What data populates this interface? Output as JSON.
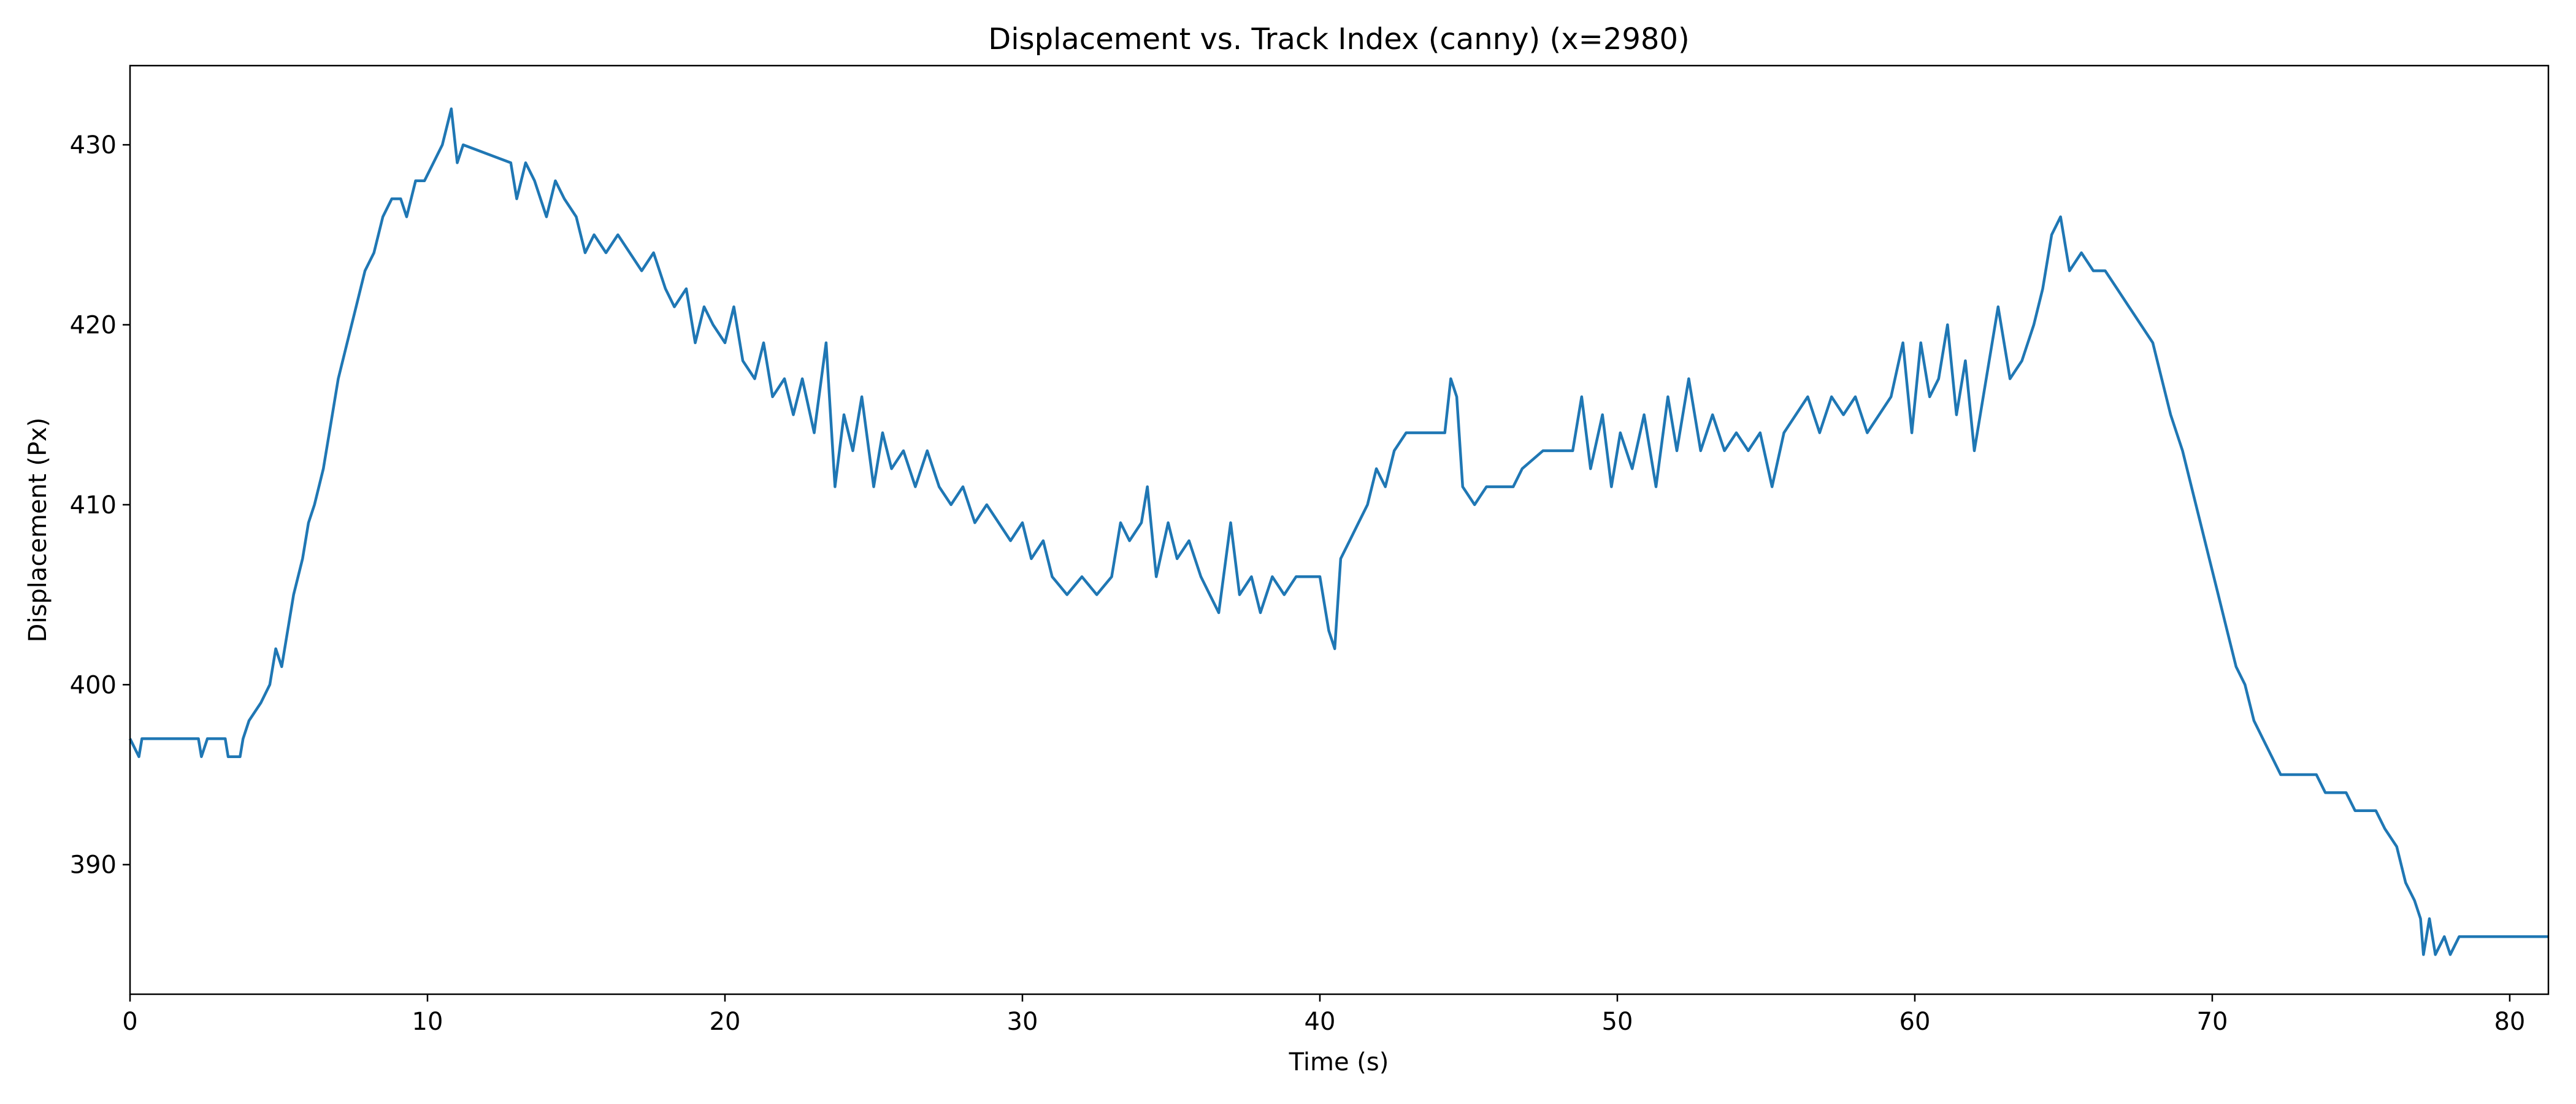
{
  "chart_data": {
    "type": "line",
    "title": "Displacement vs. Track Index (canny) (x=2980)",
    "x_label": "Time (s)",
    "y_label": "Displacement (Px)",
    "color": "#1f77b4",
    "xlim": [
      0,
      81.3
    ],
    "ylim": [
      382.8,
      434.4
    ],
    "xticks": [
      0,
      10,
      20,
      30,
      40,
      50,
      60,
      70,
      80
    ],
    "yticks": [
      390,
      400,
      410,
      420,
      430
    ],
    "grid": false,
    "x": [
      0,
      0.3,
      0.4,
      2.3,
      2.4,
      2.6,
      3.2,
      3.3,
      3.7,
      3.8,
      4,
      4.4,
      4.7,
      4.9,
      5.1,
      5.3,
      5.5,
      5.8,
      6.0,
      6.2,
      6.5,
      6.8,
      7.0,
      7.3,
      7.6,
      7.9,
      8.2,
      8.5,
      8.8,
      9.1,
      9.3,
      9.6,
      9.9,
      10.2,
      10.5,
      10.8,
      11,
      11.2,
      12.8,
      13.0,
      13.3,
      13.6,
      14.0,
      14.3,
      14.6,
      15.0,
      15.3,
      15.6,
      16.0,
      16.4,
      16.8,
      17.2,
      17.6,
      18.0,
      18.3,
      18.7,
      19.0,
      19.3,
      19.6,
      20.0,
      20.3,
      20.6,
      21.0,
      21.3,
      21.6,
      22.0,
      22.3,
      22.6,
      23.0,
      23.4,
      23.7,
      24.0,
      24.3,
      24.6,
      25.0,
      25.3,
      25.6,
      26.0,
      26.4,
      26.8,
      27.2,
      27.6,
      28.0,
      28.4,
      28.8,
      29.2,
      29.6,
      30.0,
      30.3,
      30.7,
      31.0,
      31.5,
      32.0,
      32.5,
      33.0,
      33.3,
      33.6,
      34.0,
      34.2,
      34.5,
      34.9,
      35.2,
      35.6,
      36.0,
      36.3,
      36.6,
      37.0,
      37.3,
      37.7,
      38.0,
      38.4,
      38.8,
      39.2,
      40.0,
      40.3,
      40.5,
      40.7,
      41.0,
      41.3,
      41.6,
      41.9,
      42.2,
      42.5,
      42.9,
      44.2,
      44.4,
      44.6,
      44.8,
      45.2,
      45.6,
      46.5,
      46.8,
      47.5,
      48.5,
      48.8,
      49.1,
      49.5,
      49.8,
      50.1,
      50.5,
      50.9,
      51.3,
      51.7,
      52.0,
      52.4,
      52.8,
      53.2,
      53.6,
      54.0,
      54.4,
      54.8,
      55.2,
      55.6,
      56.0,
      56.4,
      56.8,
      57.2,
      57.6,
      58.0,
      58.4,
      58.8,
      59.2,
      59.6,
      59.9,
      60.2,
      60.5,
      60.8,
      61.1,
      61.4,
      61.7,
      62.0,
      62.4,
      62.8,
      63.2,
      63.6,
      64.0,
      64.3,
      64.6,
      64.9,
      65.2,
      65.6,
      66.0,
      66.4,
      66.8,
      67.2,
      67.6,
      68.0,
      68.3,
      68.6,
      69.0,
      69.3,
      69.6,
      69.9,
      70.2,
      70.5,
      70.8,
      71.1,
      71.4,
      71.7,
      72.0,
      72.3,
      73.5,
      73.8,
      74.5,
      74.8,
      75.5,
      75.8,
      76.2,
      76.5,
      76.8,
      77.0,
      77.1,
      77.3,
      77.5,
      77.8,
      78.0,
      78.3,
      81.3
    ],
    "values": [
      397,
      396,
      397,
      397,
      396,
      397,
      397,
      396,
      396,
      397,
      398,
      399,
      400,
      402,
      401,
      403,
      405,
      407,
      409,
      410,
      412,
      415,
      417,
      419,
      421,
      423,
      424,
      426,
      427,
      427,
      426,
      428,
      428,
      429,
      430,
      432,
      429,
      430,
      429,
      427,
      429,
      428,
      426,
      428,
      427,
      426,
      424,
      425,
      424,
      425,
      424,
      423,
      424,
      422,
      421,
      422,
      419,
      421,
      420,
      419,
      421,
      418,
      417,
      419,
      416,
      417,
      415,
      417,
      414,
      419,
      411,
      415,
      413,
      416,
      411,
      414,
      412,
      413,
      411,
      413,
      411,
      410,
      411,
      409,
      410,
      409,
      408,
      409,
      407,
      408,
      406,
      405,
      406,
      405,
      406,
      409,
      408,
      409,
      411,
      406,
      409,
      407,
      408,
      406,
      405,
      404,
      409,
      405,
      406,
      404,
      406,
      405,
      406,
      406,
      403,
      402,
      407,
      408,
      409,
      410,
      412,
      411,
      413,
      414,
      414,
      417,
      416,
      411,
      410,
      411,
      411,
      412,
      413,
      413,
      416,
      412,
      415,
      411,
      414,
      412,
      415,
      411,
      416,
      413,
      417,
      413,
      415,
      413,
      414,
      413,
      414,
      411,
      414,
      415,
      416,
      414,
      416,
      415,
      416,
      414,
      415,
      416,
      419,
      414,
      419,
      416,
      417,
      420,
      415,
      418,
      413,
      417,
      421,
      417,
      418,
      420,
      422,
      425,
      426,
      423,
      424,
      423,
      423,
      422,
      421,
      420,
      419,
      417,
      415,
      413,
      411,
      409,
      407,
      405,
      403,
      401,
      400,
      398,
      397,
      396,
      395,
      395,
      394,
      394,
      393,
      393,
      392,
      391,
      389,
      388,
      387,
      385,
      387,
      385,
      386,
      385,
      386,
      386
    ]
  }
}
